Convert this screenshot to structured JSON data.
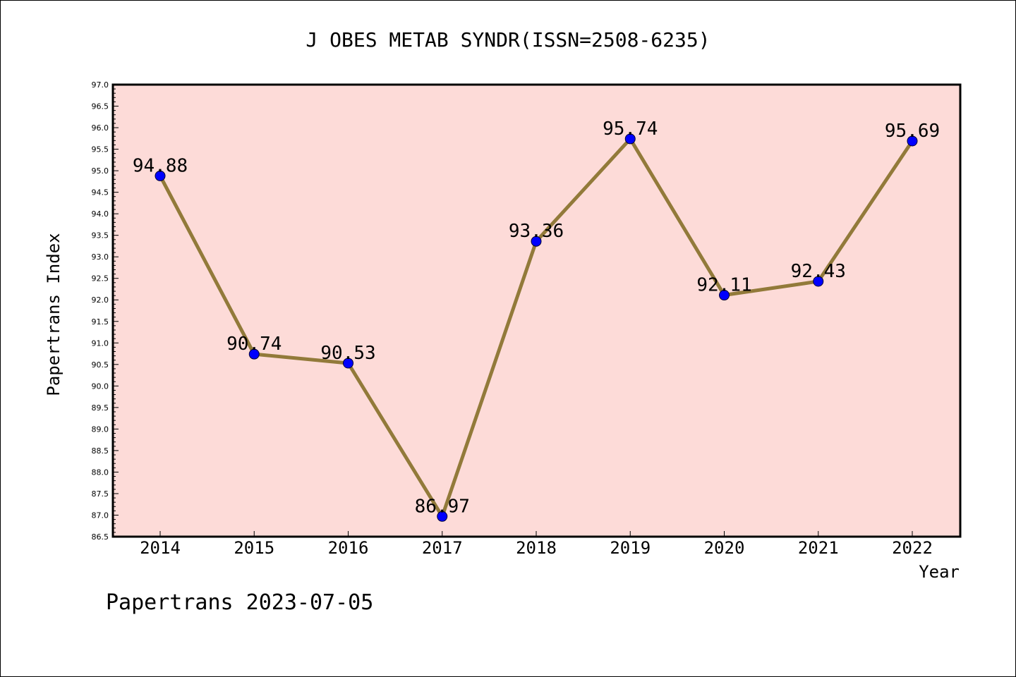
{
  "chart_data": {
    "type": "line",
    "title": "J OBES METAB SYNDR(ISSN=2508-6235)",
    "xlabel": "Year",
    "ylabel": "Papertrans Index",
    "categories": [
      "2014",
      "2015",
      "2016",
      "2017",
      "2018",
      "2019",
      "2020",
      "2021",
      "2022"
    ],
    "values": [
      94.88,
      90.74,
      90.53,
      86.97,
      93.36,
      95.74,
      92.11,
      92.43,
      95.69
    ],
    "data_labels": [
      "94.88",
      "90.74",
      "90.53",
      "86.97",
      "93.36",
      "95.74",
      "92.11",
      "92.43",
      "95.69"
    ],
    "ylim": [
      86.5,
      97.0
    ],
    "ytick_step": 0.5,
    "yticks": [
      "86.5",
      "87.0",
      "87.5",
      "88.0",
      "88.5",
      "89.0",
      "89.5",
      "90.0",
      "90.5",
      "91.0",
      "91.5",
      "92.0",
      "92.5",
      "93.0",
      "93.5",
      "94.0",
      "94.5",
      "95.0",
      "95.5",
      "96.0",
      "96.5",
      "97.0"
    ],
    "grid": false,
    "colors": {
      "plot_background": "#fddbd8",
      "line": "#927a3a",
      "marker": "#0000ff",
      "axis": "#000000",
      "text": "#000000"
    }
  },
  "footer": "Papertrans 2023-07-05"
}
